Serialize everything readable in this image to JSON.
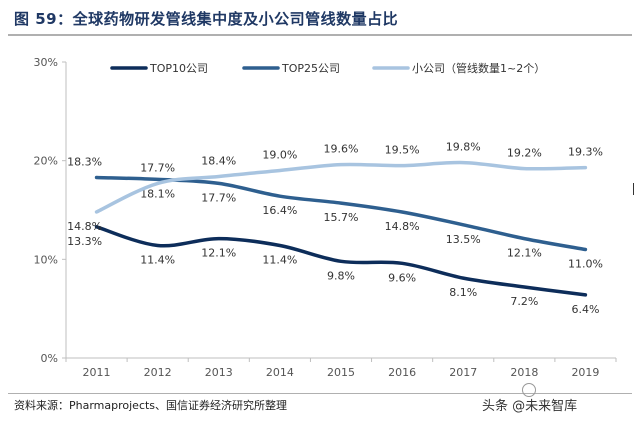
{
  "figure": {
    "title": "图 59：全球药物研发管线集中度及小公司管线数量占比",
    "source": "资料来源：Pharmaprojects、国信证券经济研究所整理",
    "watermark": "头条 @未来智库"
  },
  "chart_data": {
    "type": "line",
    "x": [
      "2011",
      "2012",
      "2013",
      "2014",
      "2015",
      "2016",
      "2017",
      "2018",
      "2019"
    ],
    "yticks": [
      "0%",
      "10%",
      "20%",
      "30%"
    ],
    "ylim": [
      0,
      30
    ],
    "grid": false,
    "legend_position": "top",
    "series": [
      {
        "name": "TOP10公司",
        "color": "#0d2d5a",
        "values": [
          13.3,
          11.4,
          12.1,
          11.4,
          9.8,
          9.6,
          8.1,
          7.2,
          6.4
        ],
        "labels": [
          "13.3%",
          "11.4%",
          "12.1%",
          "11.4%",
          "9.8%",
          "9.6%",
          "8.1%",
          "7.2%",
          "6.4%"
        ]
      },
      {
        "name": "TOP25公司",
        "color": "#2e5f8f",
        "values": [
          18.3,
          18.1,
          17.7,
          16.4,
          15.7,
          14.8,
          13.5,
          12.1,
          11.0
        ],
        "labels": [
          "18.3%",
          "18.1%",
          "17.7%",
          "16.4%",
          "15.7%",
          "14.8%",
          "13.5%",
          "12.1%",
          "11.0%"
        ]
      },
      {
        "name": "小公司（管线数量1~2个）",
        "color": "#a8c4e0",
        "values": [
          14.8,
          17.7,
          18.4,
          19.0,
          19.6,
          19.5,
          19.8,
          19.2,
          19.3
        ],
        "labels": [
          "14.8%",
          "17.7%",
          "18.4%",
          "19.0%",
          "19.6%",
          "19.5%",
          "19.8%",
          "19.2%",
          "19.3%"
        ]
      }
    ]
  }
}
